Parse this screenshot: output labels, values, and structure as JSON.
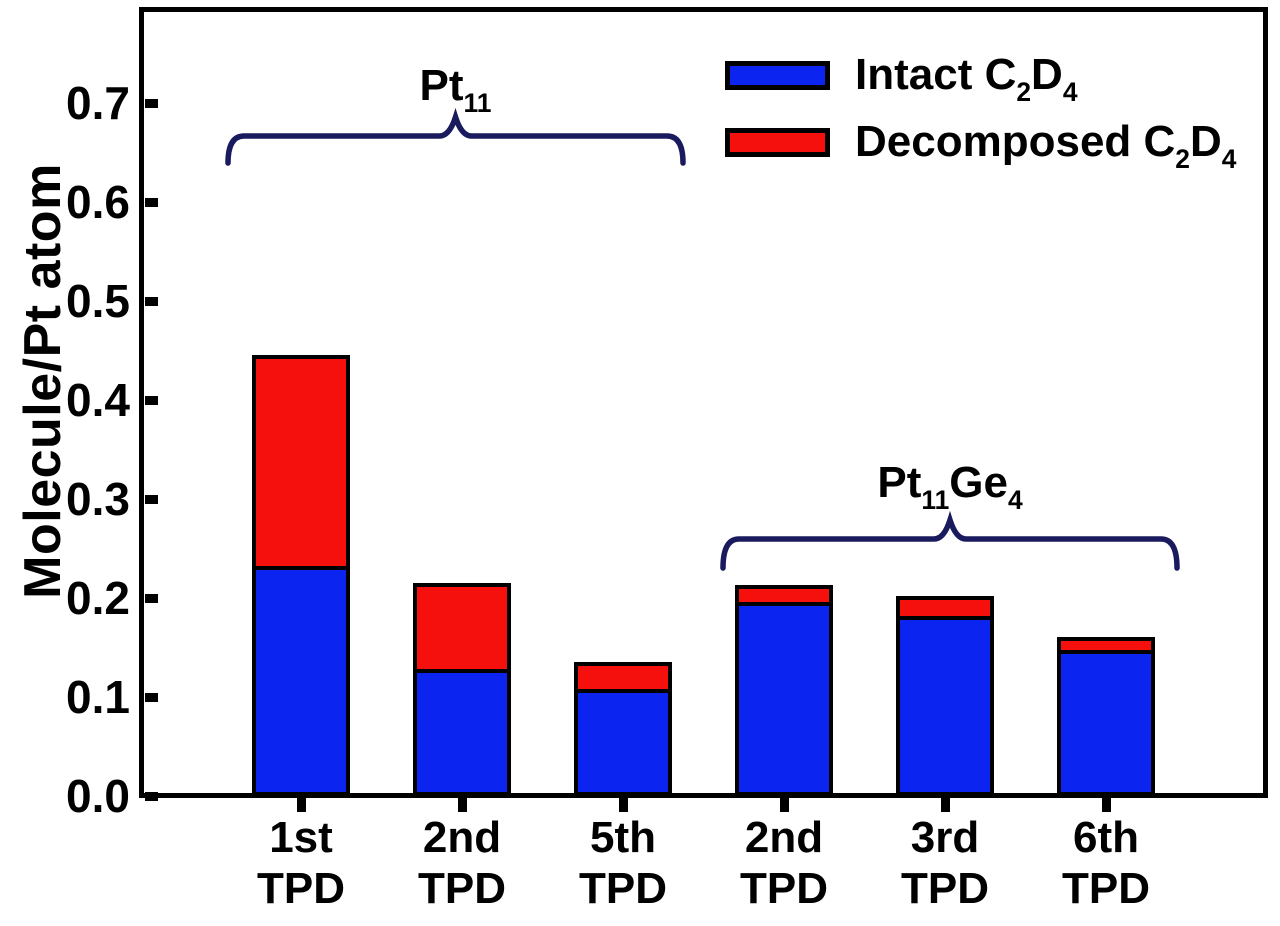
{
  "chart_data": {
    "type": "bar",
    "stacked": true,
    "title": "",
    "xlabel": "",
    "ylabel": "Molecule/Pt atom",
    "ylim": [
      0.0,
      0.795
    ],
    "yticks": [
      "0.0",
      "0.1",
      "0.2",
      "0.3",
      "0.4",
      "0.5",
      "0.6",
      "0.7"
    ],
    "grid": false,
    "legend_position": "top-right",
    "categories": [
      {
        "line1": "1st",
        "line2": "TPD"
      },
      {
        "line1": "2nd",
        "line2": "TPD"
      },
      {
        "line1": "5th",
        "line2": "TPD"
      },
      {
        "line1": "2nd",
        "line2": "TPD"
      },
      {
        "line1": "3rd",
        "line2": "TPD"
      },
      {
        "line1": "6th",
        "line2": "TPD"
      }
    ],
    "series": [
      {
        "name": "Intact C2D4",
        "label_parts": [
          {
            "t": "Intact C"
          },
          {
            "t": "2",
            "sub": true
          },
          {
            "t": "D"
          },
          {
            "t": "4",
            "sub": true
          }
        ],
        "color": "#0b24f0",
        "values": [
          0.232,
          0.128,
          0.108,
          0.196,
          0.182,
          0.148
        ]
      },
      {
        "name": "Decomposed C2D4",
        "label_parts": [
          {
            "t": "Decomposed C"
          },
          {
            "t": "2",
            "sub": true
          },
          {
            "t": "D"
          },
          {
            "t": "4",
            "sub": true
          }
        ],
        "color": "#f5100e",
        "values": [
          0.213,
          0.087,
          0.027,
          0.017,
          0.02,
          0.013
        ]
      }
    ],
    "groups": [
      {
        "name": "Pt11",
        "label_parts": [
          {
            "t": "Pt"
          },
          {
            "t": "11",
            "sub": true
          }
        ],
        "bar_indices": [
          0,
          1,
          2
        ]
      },
      {
        "name": "Pt11Ge4",
        "label_parts": [
          {
            "t": "Pt"
          },
          {
            "t": "11",
            "sub": true
          },
          {
            "t": "Ge"
          },
          {
            "t": "4",
            "sub": true
          }
        ],
        "bar_indices": [
          3,
          4,
          5
        ]
      }
    ],
    "colors": {
      "axis": "#000000",
      "brace": "#1a1a5e",
      "background": "#ffffff",
      "intact": "#0b24f0",
      "decomposed": "#f5100e"
    }
  }
}
